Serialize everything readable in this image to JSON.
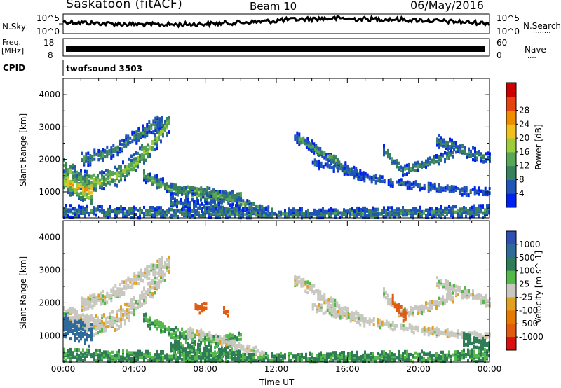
{
  "header": {
    "station": "Saskatoon (fitACF)",
    "beam": "Beam 10",
    "date": "06/May/2016"
  },
  "nsky_panel": {
    "label": "N.Sky",
    "ticks_left": [
      "10^5",
      "10^0"
    ],
    "ticks_right": [
      "10^5",
      "10^0"
    ],
    "right_label": "N.Search",
    "right_dots": "........"
  },
  "freq_panel": {
    "label_top": "Freq.",
    "label_unit": "[MHz]",
    "ticks_left": [
      "18",
      "8"
    ],
    "ticks_right": [
      "60",
      "0"
    ],
    "right_label": "Nave",
    "right_dots": "...."
  },
  "cpid_panel": {
    "label": "CPID",
    "text": "twofsound 3503"
  },
  "colors": {
    "power_scale": [
      "#0022ee",
      "#1f55b6",
      "#3a7f5e",
      "#57a757",
      "#9ccc3c",
      "#f0c020",
      "#f08c00",
      "#e34410",
      "#cc0000"
    ],
    "velocity_scale": [
      "#2f4fb4",
      "#2f6a9a",
      "#2e7d56",
      "#55b84a",
      "#c8c8c0",
      "#e2a020",
      "#e67a00",
      "#e05a10",
      "#d81010"
    ]
  },
  "chart_data": [
    {
      "type": "heatmap",
      "name": "power",
      "ylabel": "Slant Range [km]",
      "yticks": [
        "1000",
        "2000",
        "3000",
        "4000"
      ],
      "ylim": [
        200,
        4500
      ],
      "xlim": [
        "00:00",
        "24:00"
      ],
      "colorbar_label": "Power [dB]",
      "colorbar_ticks": [
        "4",
        "8",
        "12",
        "16",
        "20",
        "24",
        "28"
      ],
      "colorbar_range": [
        0,
        32
      ],
      "bands": [
        {
          "t": [
            0.0,
            1.0,
            2.0,
            3.0,
            4.0,
            5.0,
            6.0
          ],
          "r": [
            1700,
            1350,
            1300,
            1500,
            1900,
            2500,
            3200
          ],
          "w": 300,
          "p": 17
        },
        {
          "t": [
            0.0,
            0.8,
            1.6
          ],
          "r": [
            1350,
            1150,
            1000
          ],
          "w": 350,
          "p": 23
        },
        {
          "t": [
            1.0,
            2.5,
            4.0,
            5.5
          ],
          "r": [
            2000,
            2200,
            2700,
            3200
          ],
          "w": 220,
          "p": 10
        },
        {
          "t": [
            4.5,
            6.0,
            7.5,
            9.0,
            10.0
          ],
          "r": [
            1500,
            1100,
            900,
            850,
            900
          ],
          "w": 180,
          "p": 14
        },
        {
          "t": [
            6.0,
            7.0,
            8.0,
            9.0,
            10.0
          ],
          "r": [
            700,
            600,
            550,
            500,
            450
          ],
          "w": 160,
          "p": 9
        },
        {
          "t": [
            7.0,
            8.0,
            9.0,
            10.0,
            11.5
          ],
          "r": [
            1100,
            1000,
            850,
            650,
            400
          ],
          "w": 140,
          "p": 13
        },
        {
          "t": [
            0.0,
            4.0,
            8.0,
            12.0,
            16.0,
            20.0,
            24.0
          ],
          "r": [
            420,
            360,
            330,
            300,
            330,
            360,
            420
          ],
          "w": 200,
          "p": 10
        },
        {
          "t": [
            13.0,
            14.0,
            15.0,
            16.0,
            17.0
          ],
          "r": [
            2700,
            2400,
            2000,
            1700,
            1400
          ],
          "w": 170,
          "p": 9
        },
        {
          "t": [
            13.3,
            14.5,
            15.5
          ],
          "r": [
            2600,
            2200,
            1950
          ],
          "w": 110,
          "p": 15
        },
        {
          "t": [
            14.0,
            16.0,
            18.0,
            20.0,
            22.0,
            24.0
          ],
          "r": [
            1900,
            1600,
            1350,
            1200,
            1050,
            1000
          ],
          "w": 130,
          "p": 7
        },
        {
          "t": [
            18.0,
            19.0,
            20.0,
            21.0,
            22.0
          ],
          "r": [
            2300,
            1650,
            1800,
            2000,
            2200
          ],
          "w": 150,
          "p": 12
        },
        {
          "t": [
            21.0,
            22.0,
            23.0,
            24.0
          ],
          "r": [
            2600,
            2400,
            2200,
            2000
          ],
          "w": 200,
          "p": 10
        }
      ]
    },
    {
      "type": "heatmap",
      "name": "velocity",
      "ylabel": "Slant Range [km]",
      "yticks": [
        "1000",
        "2000",
        "3000",
        "4000"
      ],
      "ylim": [
        200,
        4500
      ],
      "xticks": [
        "00:00",
        "04:00",
        "08:00",
        "12:00",
        "16:00",
        "20:00",
        "00:00"
      ],
      "xlabel": "Time UT",
      "colorbar_label": "Velocity [m s^-1]",
      "colorbar_ticks": [
        "1000",
        "500",
        "100",
        "25",
        "-25",
        "-100",
        "-500",
        "-1000"
      ],
      "bands": [
        {
          "t": [
            0.0,
            1.0,
            2.0,
            3.0,
            4.0,
            5.0,
            6.0
          ],
          "r": [
            1700,
            1350,
            1300,
            1500,
            1900,
            2500,
            3200
          ],
          "w": 300,
          "v": 0
        },
        {
          "t": [
            0.0,
            0.8,
            1.6
          ],
          "r": [
            1350,
            1150,
            1000
          ],
          "w": 350,
          "v": 300
        },
        {
          "t": [
            1.0,
            2.5,
            4.0,
            5.5
          ],
          "r": [
            2000,
            2200,
            2700,
            3200
          ],
          "w": 220,
          "v": 0
        },
        {
          "t": [
            4.5,
            6.0,
            7.5,
            9.0,
            10.0
          ],
          "r": [
            1500,
            1100,
            900,
            850,
            900
          ],
          "w": 180,
          "v": 60
        },
        {
          "t": [
            6.0,
            7.0,
            8.0,
            9.0,
            10.0
          ],
          "r": [
            700,
            600,
            550,
            500,
            450
          ],
          "w": 160,
          "v": 80
        },
        {
          "t": [
            7.0,
            8.0,
            9.0,
            10.0,
            11.5
          ],
          "r": [
            1100,
            1000,
            850,
            650,
            400
          ],
          "w": 140,
          "v": 0
        },
        {
          "t": [
            0.0,
            4.0,
            8.0,
            12.0,
            16.0,
            20.0,
            24.0
          ],
          "r": [
            420,
            360,
            330,
            300,
            330,
            360,
            420
          ],
          "w": 200,
          "v": 70
        },
        {
          "t": [
            13.0,
            14.0,
            15.0,
            16.0,
            17.0
          ],
          "r": [
            2700,
            2400,
            2000,
            1700,
            1400
          ],
          "w": 170,
          "v": 0
        },
        {
          "t": [
            14.0,
            16.0,
            18.0,
            20.0,
            22.0,
            24.0
          ],
          "r": [
            1900,
            1600,
            1350,
            1200,
            1050,
            1000
          ],
          "w": 130,
          "v": 0
        },
        {
          "t": [
            18.0,
            19.0,
            20.0,
            21.0,
            22.0
          ],
          "r": [
            2300,
            1650,
            1800,
            2000,
            2200
          ],
          "w": 150,
          "v": 0
        },
        {
          "t": [
            18.5,
            18.9,
            19.3
          ],
          "r": [
            2100,
            1750,
            1550
          ],
          "w": 200,
          "v": -500
        },
        {
          "t": [
            7.4,
            7.7,
            8.0
          ],
          "r": [
            2000,
            1800,
            1900
          ],
          "w": 150,
          "v": -500
        },
        {
          "t": [
            9.0,
            9.3
          ],
          "r": [
            1800,
            1600
          ],
          "w": 130,
          "v": -500
        },
        {
          "t": [
            21.0,
            22.0,
            23.0,
            24.0
          ],
          "r": [
            2600,
            2400,
            2200,
            2000
          ],
          "w": 200,
          "v": 0
        },
        {
          "t": [
            22.5,
            23.2,
            24.0
          ],
          "r": [
            900,
            800,
            700
          ],
          "w": 200,
          "v": 120
        }
      ]
    }
  ]
}
